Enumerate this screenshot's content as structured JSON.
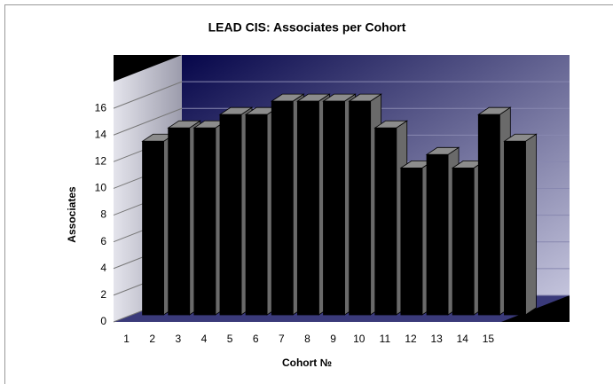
{
  "chart_data": {
    "type": "bar",
    "title": "LEAD CIS: Associates per Cohort",
    "xlabel": "Cohort №",
    "ylabel": "Associates",
    "categories": [
      "1",
      "2",
      "3",
      "4",
      "5",
      "6",
      "7",
      "8",
      "9",
      "10",
      "11",
      "12",
      "13",
      "14",
      "15"
    ],
    "values": [
      13,
      14,
      14,
      15,
      15,
      16,
      16,
      16,
      16,
      14,
      11,
      12,
      11,
      15,
      13
    ],
    "color": "#000000",
    "ylim": [
      0,
      18
    ],
    "yticks": [
      0,
      2,
      4,
      6,
      8,
      10,
      12,
      14,
      16
    ],
    "grid": true
  }
}
